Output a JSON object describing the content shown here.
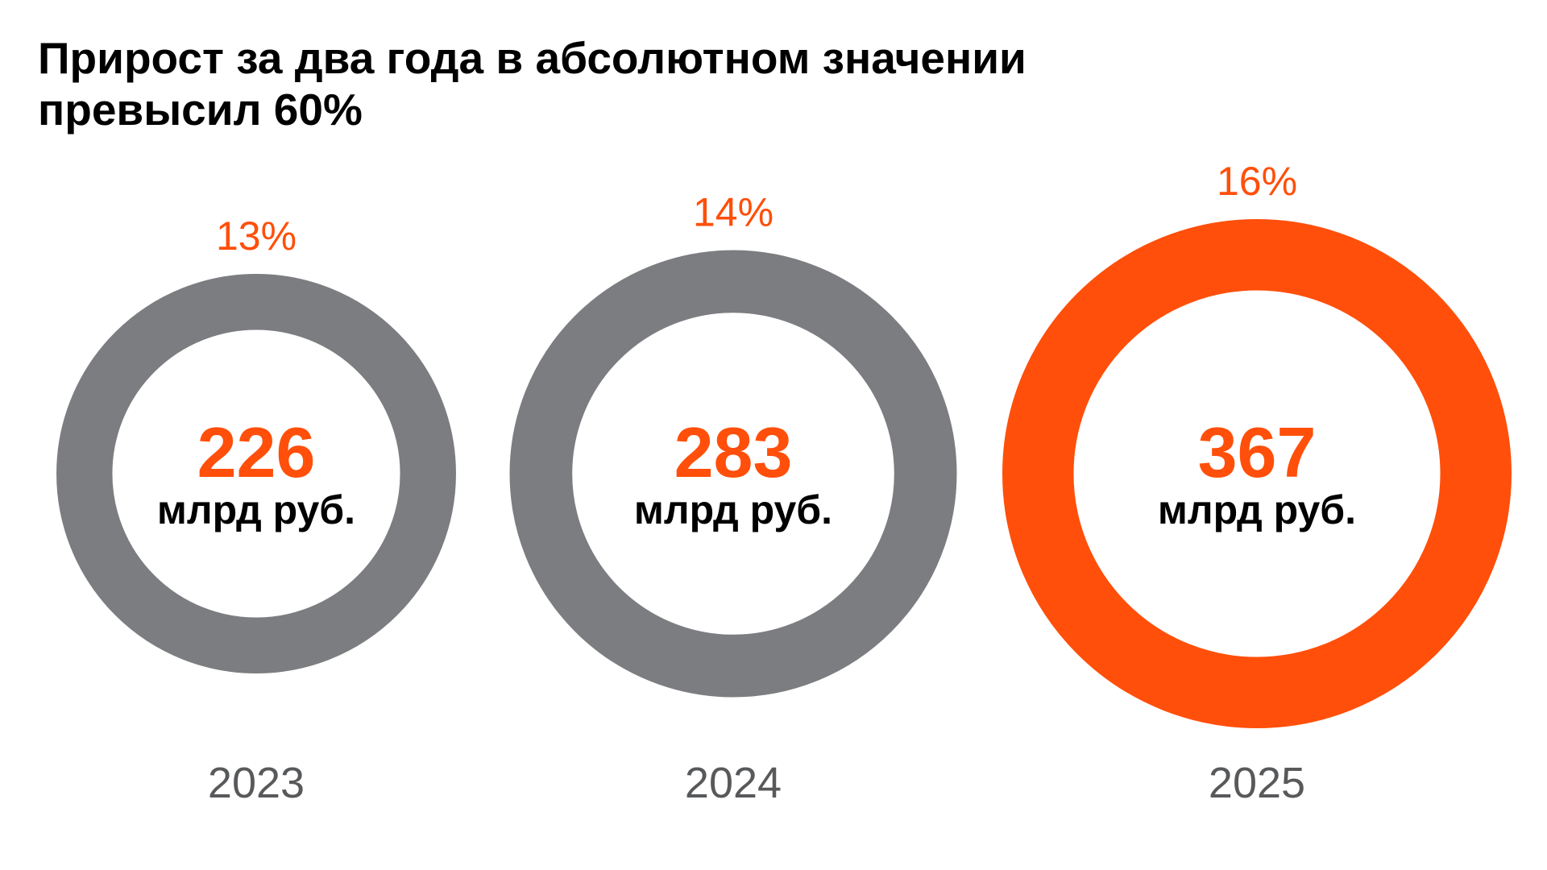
{
  "title": "Прирост за два года в абсолютном значении превысил 60%",
  "colors": {
    "accent": "#ff4f0a",
    "ring_gray": "#7c7d80",
    "year_text": "#58595b",
    "unit_text": "#000000"
  },
  "chart_data": {
    "type": "donut",
    "title": "Прирост за два года в абсолютном значении превысил 60%",
    "items": [
      {
        "year": "2023",
        "value": "226",
        "unit": "млрд руб.",
        "share": "13%",
        "highlight": false
      },
      {
        "year": "2024",
        "value": "283",
        "unit": "млрд руб.",
        "share": "14%",
        "highlight": false
      },
      {
        "year": "2025",
        "value": "367",
        "unit": "млрд руб.",
        "share": "16%",
        "highlight": true
      }
    ]
  }
}
